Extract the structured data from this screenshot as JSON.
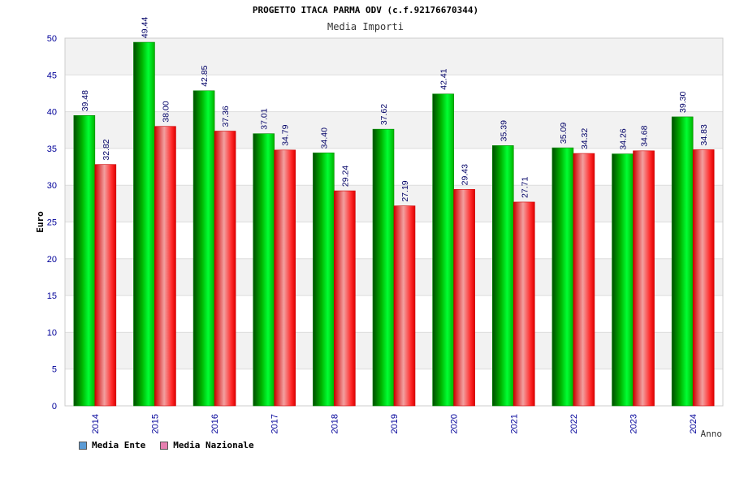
{
  "header": {
    "title": "PROGETTO ITACA PARMA ODV (c.f.92176670344)",
    "subtitle": "Media Importi"
  },
  "legend": {
    "items": [
      {
        "label": "Media Ente",
        "color": "#5b9bd5"
      },
      {
        "label": "Media Nazionale",
        "color": "#e67fb0"
      }
    ]
  },
  "chart_data": {
    "type": "bar",
    "title": "PROGETTO ITACA PARMA ODV (c.f.92176670344)",
    "subtitle": "Media Importi",
    "xlabel": "Anno",
    "ylabel": "Euro",
    "ylim": [
      0,
      50
    ],
    "yticks": [
      0,
      5,
      10,
      15,
      20,
      25,
      30,
      35,
      40,
      45,
      50
    ],
    "categories": [
      "2014",
      "2015",
      "2016",
      "2017",
      "2018",
      "2019",
      "2020",
      "2021",
      "2022",
      "2023",
      "2024"
    ],
    "series": [
      {
        "name": "Media Ente",
        "values": [
          39.48,
          49.44,
          42.85,
          37.01,
          34.4,
          37.62,
          42.41,
          35.39,
          35.09,
          34.26,
          39.3
        ],
        "labels": [
          "39.48",
          "49.44",
          "42.85",
          "37.01",
          "34.40",
          "37.62",
          "42.41",
          "35.39",
          "35.09",
          "34.26",
          "39.30"
        ],
        "color": "#00cc00"
      },
      {
        "name": "Media Nazionale",
        "values": [
          32.82,
          38.0,
          37.36,
          34.79,
          29.24,
          27.19,
          29.43,
          27.71,
          34.32,
          34.68,
          34.83
        ],
        "labels": [
          "32.82",
          "38.00",
          "37.36",
          "34.79",
          "29.24",
          "27.19",
          "29.43",
          "27.71",
          "34.32",
          "34.68",
          "34.83"
        ],
        "color": "#ff0000"
      }
    ],
    "grid": true,
    "legend_position": "bottom-left"
  }
}
